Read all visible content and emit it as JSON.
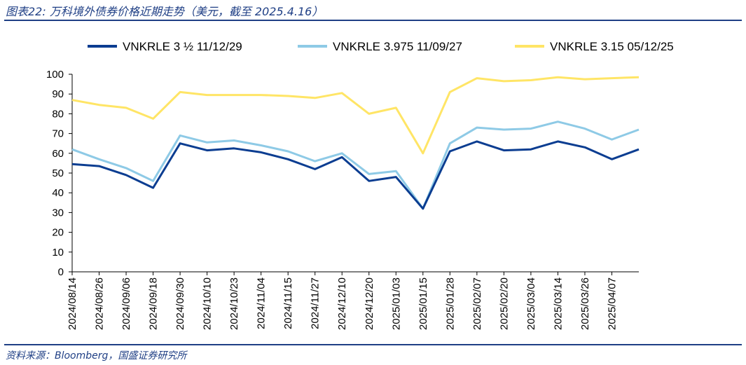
{
  "header": {
    "title": "图表22:  万科境外债券价格近期走势（美元，截至 2025.4.16）"
  },
  "footer": {
    "source": "资料来源：Bloomberg，国盛证券研究所"
  },
  "colors": {
    "accent": "#1f3f85",
    "series_dark": "#0b3d91",
    "series_light": "#8ecae6",
    "series_yellow": "#ffe566"
  },
  "chart_data": {
    "type": "line",
    "title": "",
    "xlabel": "",
    "ylabel": "",
    "ylim": [
      0,
      100
    ],
    "yticks": [
      0,
      10,
      20,
      30,
      40,
      50,
      60,
      70,
      80,
      90,
      100
    ],
    "grid": false,
    "legend_position": "top",
    "x": [
      "2024/08/14",
      "2024/08/26",
      "2024/09/06",
      "2024/09/18",
      "2024/09/30",
      "2024/10/10",
      "2024/10/23",
      "2024/11/04",
      "2024/11/15",
      "2024/11/27",
      "2024/12/10",
      "2024/12/20",
      "2025/01/03",
      "2025/01/15",
      "2025/01/28",
      "2025/02/07",
      "2025/02/20",
      "2025/03/04",
      "2025/03/14",
      "2025/03/26",
      "2025/04/07",
      "2025/04/16"
    ],
    "xtick_labels": [
      "2024/08/14",
      "2024/08/26",
      "2024/09/06",
      "2024/09/18",
      "2024/09/30",
      "2024/10/10",
      "2024/10/23",
      "2024/11/04",
      "2024/11/15",
      "2024/11/27",
      "2024/12/10",
      "2024/12/20",
      "2025/01/03",
      "2025/01/15",
      "2025/01/28",
      "2025/02/07",
      "2025/02/20",
      "2025/03/04",
      "2025/03/14",
      "2025/03/26",
      "2025/04/07"
    ],
    "series": [
      {
        "name": "VNKRLE 3 ½ 11/12/29",
        "color": "#0b3d91",
        "values": [
          54.5,
          53.5,
          49,
          42.5,
          65,
          61.5,
          62.5,
          60.5,
          57,
          52,
          58,
          46,
          48,
          32,
          61,
          66,
          61.5,
          62,
          66,
          63,
          57,
          62
        ]
      },
      {
        "name": "VNKRLE 3.975 11/09/27",
        "color": "#8ecae6",
        "values": [
          62,
          57,
          52.5,
          46,
          69,
          65.5,
          66.5,
          64,
          61,
          56,
          60,
          49.5,
          51,
          32,
          65,
          73,
          72,
          72.5,
          76,
          72.5,
          67,
          72
        ]
      },
      {
        "name": "VNKRLE 3.15 05/12/25",
        "color": "#ffe566",
        "values": [
          87,
          84.5,
          83,
          77.5,
          91,
          89.5,
          89.5,
          89.5,
          89,
          88,
          90.5,
          80,
          83,
          60,
          91,
          98,
          96.5,
          97,
          98.5,
          97.5,
          98,
          98.5
        ]
      }
    ]
  }
}
